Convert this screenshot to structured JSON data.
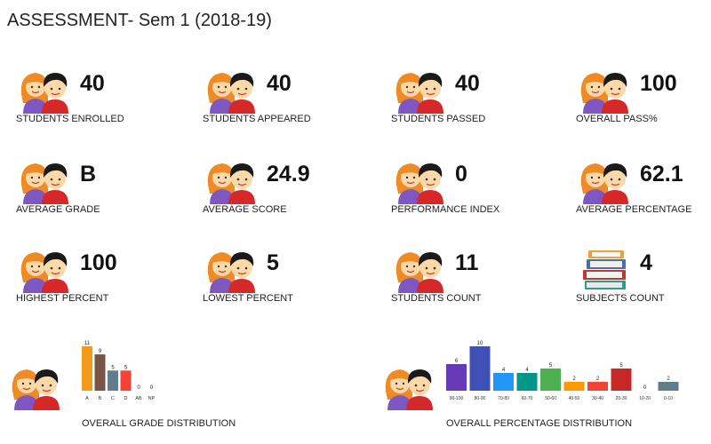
{
  "page": {
    "title": "ASSESSMENT- Sem 1 (2018-19)"
  },
  "cards": [
    {
      "value": "40",
      "label": "STUDENTS ENROLLED",
      "icon": "students-icon"
    },
    {
      "value": "40",
      "label": "STUDENTS APPEARED",
      "icon": "students-icon"
    },
    {
      "value": "40",
      "label": "STUDENTS PASSED",
      "icon": "students-icon"
    },
    {
      "value": "100",
      "label": "OVERALL PASS%",
      "icon": "students-icon"
    },
    {
      "value": "B",
      "label": "AVERAGE GRADE",
      "icon": "students-icon"
    },
    {
      "value": "24.9",
      "label": "AVERAGE SCORE",
      "icon": "students-icon"
    },
    {
      "value": "0",
      "label": "PERFORMANCE INDEX",
      "icon": "students-icon"
    },
    {
      "value": "62.1",
      "label": "AVERAGE PERCENTAGE",
      "icon": "students-icon"
    },
    {
      "value": "100",
      "label": "HIGHEST PERCENT",
      "icon": "students-icon"
    },
    {
      "value": "5",
      "label": "LOWEST PERCENT",
      "icon": "students-icon"
    },
    {
      "value": "11",
      "label": "STUDENTS COUNT",
      "icon": "students-icon"
    },
    {
      "value": "4",
      "label": "SUBJECTS COUNT",
      "icon": "books-icon"
    }
  ],
  "chart_data": [
    {
      "type": "bar",
      "title": "OVERALL GRADE DISTRIBUTION",
      "categories": [
        "A",
        "B",
        "C",
        "D",
        "AB",
        "NP"
      ],
      "values": [
        11,
        9,
        5,
        5,
        0,
        0
      ],
      "colors": [
        "#f39a1c",
        "#795548",
        "#5f7d8c",
        "#f44336",
        "#9e9e9e",
        "#9e9e9e"
      ],
      "ylim": [
        0,
        11
      ]
    },
    {
      "type": "bar",
      "title": "OVERALL PERCENTAGE DISTRIBUTION",
      "categories": [
        "90-100",
        "80-90",
        "70-80",
        "60-70",
        "50-60",
        "40-50",
        "30-40",
        "20-30",
        "10-20",
        "0-10"
      ],
      "values": [
        6,
        10,
        4,
        4,
        5,
        2,
        2,
        5,
        0,
        2
      ],
      "colors": [
        "#673ab7",
        "#3f51b5",
        "#2196f3",
        "#009688",
        "#4caf50",
        "#ff9800",
        "#f44336",
        "#c62828",
        "#9e9e9e",
        "#607d8b"
      ],
      "ylim": [
        0,
        10
      ]
    }
  ]
}
